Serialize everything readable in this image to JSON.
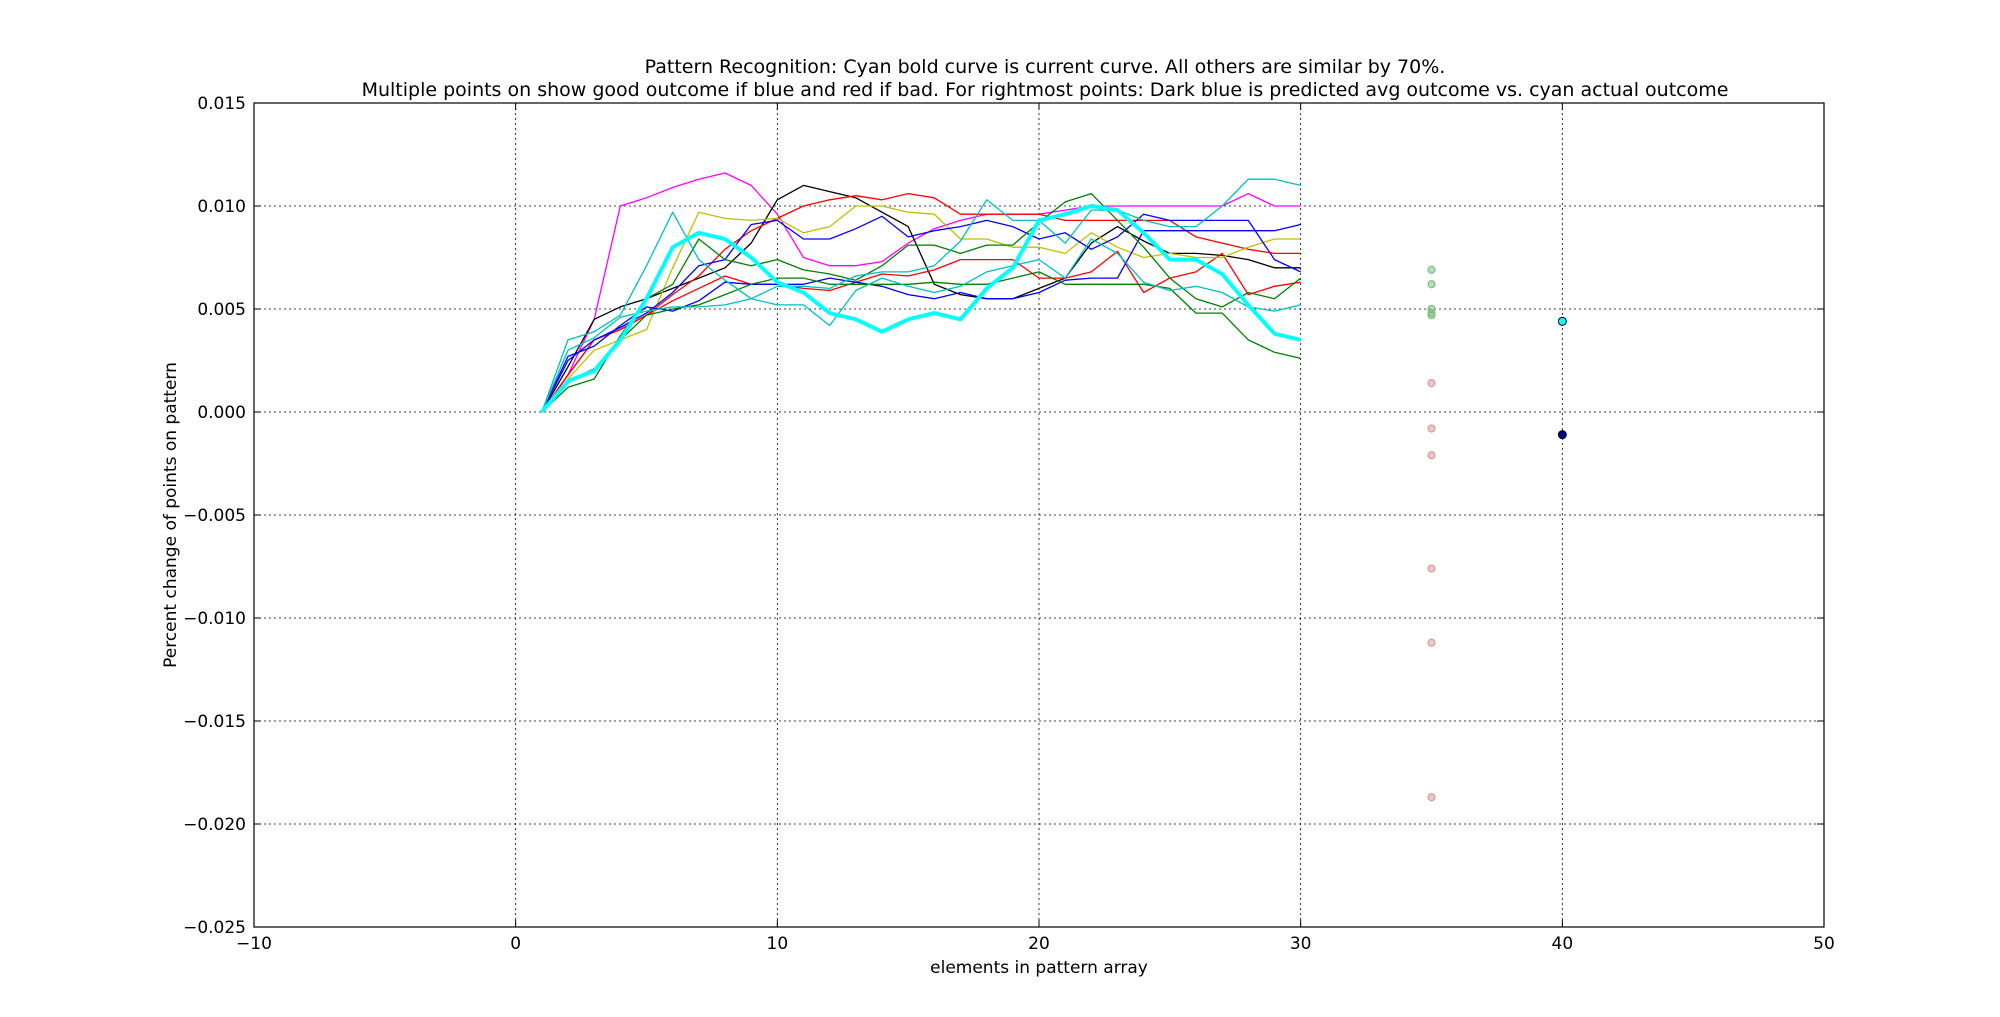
{
  "chart_data": {
    "type": "line",
    "title": "Pattern Recognition: Cyan bold curve is current curve. All others are similar by 70%.",
    "subtitle": "Multiple points on show good outcome if blue and red if bad. For rightmost points: Dark blue is predicted avg outcome vs. cyan actual outcome",
    "xlabel": "elements in pattern array",
    "ylabel": "Percent change of points on pattern",
    "xlim": [
      -10,
      50
    ],
    "ylim": [
      -0.025,
      0.015
    ],
    "xticks": [
      -10,
      0,
      10,
      20,
      30,
      40,
      50
    ],
    "xtick_labels": [
      "−10",
      "0",
      "10",
      "20",
      "30",
      "40",
      "50"
    ],
    "yticks": [
      -0.025,
      -0.02,
      -0.015,
      -0.01,
      -0.005,
      0.0,
      0.005,
      0.01,
      0.015
    ],
    "ytick_labels": [
      "−0.025",
      "−0.020",
      "−0.015",
      "−0.010",
      "−0.005",
      "0.000",
      "0.005",
      "0.010",
      "0.015"
    ],
    "grid": true,
    "x": [
      1,
      2,
      3,
      4,
      5,
      6,
      7,
      8,
      9,
      10,
      11,
      12,
      13,
      14,
      15,
      16,
      17,
      18,
      19,
      20,
      21,
      22,
      23,
      24,
      25,
      26,
      27,
      28,
      29,
      30
    ],
    "series": [
      {
        "color": "#ff00ff",
        "width": 1.3,
        "values": [
          0,
          0.0018,
          0.0045,
          0.01,
          0.0104,
          0.0109,
          0.0113,
          0.0116,
          0.011,
          0.0096,
          0.0075,
          0.0071,
          0.0071,
          0.0073,
          0.0082,
          0.0089,
          0.0093,
          0.0096,
          0.0096,
          0.0096,
          0.0098,
          0.01,
          0.01,
          0.01,
          0.01,
          0.01,
          0.01,
          0.0106,
          0.01,
          0.01
        ]
      },
      {
        "color": "#000000",
        "width": 1.3,
        "values": [
          0,
          0.0022,
          0.0045,
          0.0051,
          0.0055,
          0.006,
          0.0065,
          0.007,
          0.0082,
          0.0103,
          0.011,
          0.0107,
          0.0104,
          0.0097,
          0.009,
          0.0062,
          0.0057,
          0.0055,
          0.0055,
          0.006,
          0.0065,
          0.0082,
          0.009,
          0.0083,
          0.0077,
          0.0077,
          0.0076,
          0.0074,
          0.007,
          0.007
        ]
      },
      {
        "color": "#ff0000",
        "width": 1.3,
        "values": [
          0,
          0.0018,
          0.0035,
          0.004,
          0.0047,
          0.0057,
          0.0066,
          0.0079,
          0.0088,
          0.0094,
          0.01,
          0.0103,
          0.0105,
          0.0103,
          0.0106,
          0.0104,
          0.0096,
          0.0096,
          0.0096,
          0.0096,
          0.0093,
          0.0093,
          0.0093,
          0.0093,
          0.0093,
          0.0085,
          0.0082,
          0.0079,
          0.0077,
          0.0077
        ]
      },
      {
        "color": "#ff0000",
        "width": 1.3,
        "values": [
          0,
          0.0018,
          0.0035,
          0.004,
          0.0047,
          0.0054,
          0.006,
          0.0066,
          0.0062,
          0.0062,
          0.006,
          0.0059,
          0.0063,
          0.0067,
          0.0066,
          0.0069,
          0.0074,
          0.0074,
          0.0074,
          0.0065,
          0.0065,
          0.0068,
          0.0078,
          0.0058,
          0.0065,
          0.0068,
          0.0077,
          0.0057,
          0.0061,
          0.0063
        ]
      },
      {
        "color": "#bfbf00",
        "width": 1.3,
        "values": [
          0,
          0.0016,
          0.003,
          0.0035,
          0.004,
          0.007,
          0.0097,
          0.0094,
          0.0093,
          0.0094,
          0.0087,
          0.009,
          0.01,
          0.01,
          0.0097,
          0.0096,
          0.0084,
          0.0084,
          0.008,
          0.008,
          0.0077,
          0.0087,
          0.008,
          0.0075,
          0.0077,
          0.0075,
          0.0075,
          0.008,
          0.0084,
          0.0084
        ]
      },
      {
        "color": "#0000ff",
        "width": 1.3,
        "values": [
          0,
          0.0025,
          0.0035,
          0.0041,
          0.0048,
          0.0058,
          0.0071,
          0.0074,
          0.0091,
          0.0093,
          0.0084,
          0.0084,
          0.0089,
          0.0095,
          0.0085,
          0.0088,
          0.009,
          0.0093,
          0.009,
          0.0084,
          0.0087,
          0.0079,
          0.0085,
          0.0096,
          0.0093,
          0.0093,
          0.0093,
          0.0093,
          0.0074,
          0.0068
        ]
      },
      {
        "color": "#0000ff",
        "width": 1.3,
        "values": [
          0,
          0.0027,
          0.0032,
          0.0042,
          0.0051,
          0.0049,
          0.0054,
          0.0063,
          0.0062,
          0.0062,
          0.0062,
          0.0065,
          0.0063,
          0.0061,
          0.0057,
          0.0055,
          0.0058,
          0.0055,
          0.0055,
          0.0058,
          0.0064,
          0.0065,
          0.0065,
          0.0088,
          0.0088,
          0.0088,
          0.0088,
          0.0088,
          0.0088,
          0.0091
        ]
      },
      {
        "color": "#007f00",
        "width": 1.3,
        "values": [
          0,
          0.0012,
          0.0016,
          0.0037,
          0.0055,
          0.0062,
          0.0084,
          0.0074,
          0.0071,
          0.0074,
          0.0069,
          0.0067,
          0.0064,
          0.0071,
          0.0081,
          0.0081,
          0.0077,
          0.0081,
          0.0081,
          0.0092,
          0.0102,
          0.0106,
          0.0093,
          0.008,
          0.0065,
          0.0055,
          0.0051,
          0.0058,
          0.0055,
          0.0065
        ]
      },
      {
        "color": "#007f00",
        "width": 1.3,
        "values": [
          0,
          0.0015,
          0.0021,
          0.0035,
          0.0047,
          0.005,
          0.0052,
          0.0057,
          0.0062,
          0.0065,
          0.0065,
          0.0062,
          0.0062,
          0.0062,
          0.0062,
          0.0063,
          0.0062,
          0.0062,
          0.0065,
          0.0068,
          0.0062,
          0.0062,
          0.0062,
          0.0062,
          0.006,
          0.0048,
          0.0048,
          0.0035,
          0.0029,
          0.0026
        ]
      },
      {
        "color": "#00bfbf",
        "width": 1.3,
        "values": [
          0,
          0.0035,
          0.0039,
          0.0047,
          0.0071,
          0.0097,
          0.0074,
          0.0064,
          0.0055,
          0.0052,
          0.0052,
          0.0042,
          0.0059,
          0.0065,
          0.0061,
          0.0058,
          0.0061,
          0.0068,
          0.0071,
          0.0074,
          0.0065,
          0.0084,
          0.0077,
          0.0063,
          0.0059,
          0.0061,
          0.0058,
          0.0051,
          0.0049,
          0.0052
        ]
      },
      {
        "color": "#00bfbf",
        "width": 1.3,
        "values": [
          0,
          0.003,
          0.0036,
          0.0046,
          0.0049,
          0.0051,
          0.0051,
          0.0052,
          0.0055,
          0.0061,
          0.0061,
          0.006,
          0.0066,
          0.0068,
          0.0068,
          0.0071,
          0.0083,
          0.0103,
          0.0093,
          0.0093,
          0.0082,
          0.0098,
          0.0098,
          0.0093,
          0.009,
          0.009,
          0.01,
          0.0113,
          0.0113,
          0.011
        ]
      },
      {
        "color": "#00ffff",
        "width": 4,
        "values": [
          0,
          0.0015,
          0.002,
          0.0035,
          0.0055,
          0.008,
          0.0087,
          0.0084,
          0.0075,
          0.0063,
          0.0058,
          0.0048,
          0.0045,
          0.0039,
          0.0045,
          0.0048,
          0.0045,
          0.006,
          0.007,
          0.0093,
          0.0096,
          0.01,
          0.0098,
          0.0087,
          0.0074,
          0.0074,
          0.0067,
          0.0052,
          0.0038,
          0.0035
        ]
      }
    ],
    "outcome_points": {
      "x": 35,
      "good": [
        0.0069,
        0.0062,
        0.005,
        0.0048,
        0.0047
      ],
      "bad": [
        0.0014,
        -0.0008,
        -0.0021,
        -0.0076,
        -0.0112,
        -0.0187
      ],
      "good_color": "#7fbf7f",
      "bad_color": "#d99a9a"
    },
    "prediction_points": [
      {
        "x": 40,
        "y": 0.0044,
        "color": "#00ffff",
        "label": "actual"
      },
      {
        "x": 40,
        "y": -0.0011,
        "color": "#00008b",
        "label": "predicted"
      }
    ]
  }
}
